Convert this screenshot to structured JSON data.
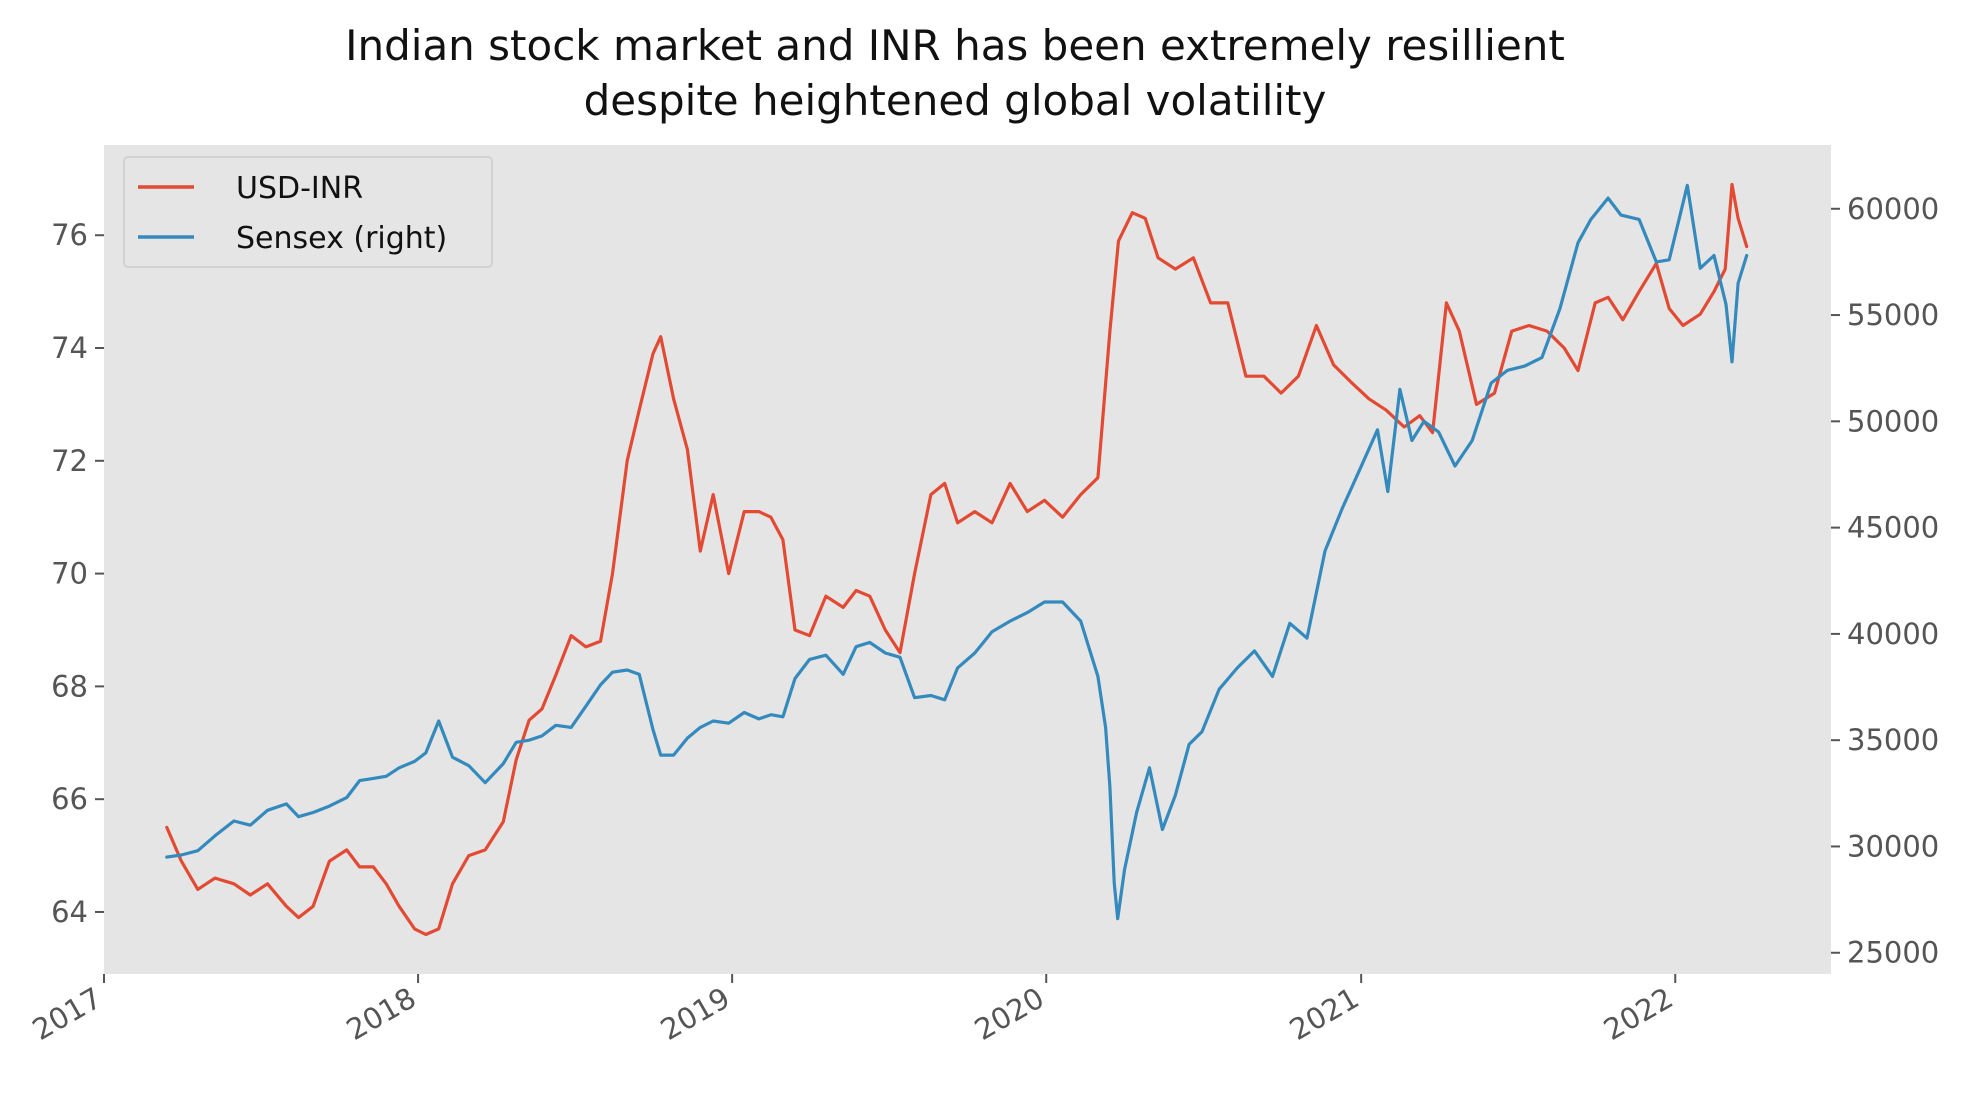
{
  "chart_data": {
    "type": "line",
    "title": [
      "Indian stock market and INR has been extremely resillient",
      "despite heightened global volatility"
    ],
    "xlabel": "",
    "ylabel": "",
    "y2label": "",
    "grid": false,
    "legend_position": "top-left",
    "x_ticks": [
      "2017",
      "2018",
      "2019",
      "2020",
      "2021",
      "2022"
    ],
    "y_ticks": [
      "64",
      "66",
      "68",
      "70",
      "72",
      "74",
      "76"
    ],
    "y2_ticks": [
      "25000",
      "30000",
      "35000",
      "40000",
      "45000",
      "50000",
      "55000",
      "60000"
    ],
    "xlim": [
      "2017-01-01",
      "2022-07-01"
    ],
    "ylim": [
      62.9,
      77.6
    ],
    "y2lim": [
      24000,
      63000
    ],
    "series": [
      {
        "name": "USD-INR",
        "axis": "left",
        "color": "#e24a33",
        "x": [
          "2017-03-15",
          "2017-04-01",
          "2017-04-20",
          "2017-05-10",
          "2017-06-01",
          "2017-06-20",
          "2017-07-10",
          "2017-08-01",
          "2017-08-15",
          "2017-09-01",
          "2017-09-20",
          "2017-10-10",
          "2017-10-25",
          "2017-11-10",
          "2017-11-25",
          "2017-12-10",
          "2017-12-28",
          "2018-01-10",
          "2018-01-25",
          "2018-02-10",
          "2018-03-01",
          "2018-03-20",
          "2018-04-10",
          "2018-04-25",
          "2018-05-10",
          "2018-05-25",
          "2018-06-10",
          "2018-06-28",
          "2018-07-15",
          "2018-08-01",
          "2018-08-15",
          "2018-09-01",
          "2018-09-15",
          "2018-10-01",
          "2018-10-10",
          "2018-10-25",
          "2018-11-10",
          "2018-11-25",
          "2018-12-10",
          "2018-12-28",
          "2019-01-15",
          "2019-02-01",
          "2019-02-15",
          "2019-03-01",
          "2019-03-15",
          "2019-04-01",
          "2019-04-20",
          "2019-05-10",
          "2019-05-25",
          "2019-06-10",
          "2019-06-28",
          "2019-07-15",
          "2019-08-01",
          "2019-08-20",
          "2019-09-05",
          "2019-09-20",
          "2019-10-10",
          "2019-10-30",
          "2019-11-20",
          "2019-12-10",
          "2019-12-30",
          "2020-01-20",
          "2020-02-10",
          "2020-03-01",
          "2020-03-15",
          "2020-03-25",
          "2020-04-10",
          "2020-04-25",
          "2020-05-10",
          "2020-05-30",
          "2020-06-20",
          "2020-07-10",
          "2020-07-30",
          "2020-08-20",
          "2020-09-10",
          "2020-09-30",
          "2020-10-20",
          "2020-11-10",
          "2020-11-30",
          "2020-12-20",
          "2021-01-10",
          "2021-01-30",
          "2021-02-20",
          "2021-03-10",
          "2021-03-25",
          "2021-04-10",
          "2021-04-25",
          "2021-05-15",
          "2021-06-05",
          "2021-06-25",
          "2021-07-15",
          "2021-08-05",
          "2021-08-25",
          "2021-09-10",
          "2021-09-30",
          "2021-10-15",
          "2021-11-01",
          "2021-11-20",
          "2021-12-10",
          "2021-12-25",
          "2022-01-10",
          "2022-01-30",
          "2022-02-15",
          "2022-02-28",
          "2022-03-08",
          "2022-03-15",
          "2022-03-25"
        ],
        "y": [
          65.5,
          64.9,
          64.4,
          64.6,
          64.5,
          64.3,
          64.5,
          64.1,
          63.9,
          64.1,
          64.9,
          65.1,
          64.8,
          64.8,
          64.5,
          64.1,
          63.7,
          63.6,
          63.7,
          64.5,
          65.0,
          65.1,
          65.6,
          66.7,
          67.4,
          67.6,
          68.2,
          68.9,
          68.7,
          68.8,
          70.0,
          72.0,
          72.9,
          73.9,
          74.2,
          73.1,
          72.2,
          70.4,
          71.4,
          70.0,
          71.1,
          71.1,
          71.0,
          70.6,
          69.0,
          68.9,
          69.6,
          69.4,
          69.7,
          69.6,
          69.0,
          68.6,
          70.0,
          71.4,
          71.6,
          70.9,
          71.1,
          70.9,
          71.6,
          71.1,
          71.3,
          71.0,
          71.4,
          71.7,
          74.3,
          75.9,
          76.4,
          76.3,
          75.6,
          75.4,
          75.6,
          74.8,
          74.8,
          73.5,
          73.5,
          73.2,
          73.5,
          74.4,
          73.7,
          73.4,
          73.1,
          72.9,
          72.6,
          72.8,
          72.5,
          74.8,
          74.3,
          73.0,
          73.2,
          74.3,
          74.4,
          74.3,
          74.0,
          73.6,
          74.8,
          74.9,
          74.5,
          75.0,
          75.5,
          74.7,
          74.4,
          74.6,
          75.0,
          75.4,
          76.9,
          76.3,
          75.8
        ]
      },
      {
        "name": "Sensex (right)",
        "axis": "right",
        "color": "#348abd",
        "x": [
          "2017-03-15",
          "2017-04-01",
          "2017-04-20",
          "2017-05-10",
          "2017-06-01",
          "2017-06-20",
          "2017-07-10",
          "2017-08-01",
          "2017-08-15",
          "2017-09-01",
          "2017-09-20",
          "2017-10-10",
          "2017-10-25",
          "2017-11-10",
          "2017-11-25",
          "2017-12-10",
          "2017-12-28",
          "2018-01-10",
          "2018-01-25",
          "2018-02-10",
          "2018-03-01",
          "2018-03-20",
          "2018-04-10",
          "2018-04-25",
          "2018-05-10",
          "2018-05-25",
          "2018-06-10",
          "2018-06-28",
          "2018-07-15",
          "2018-08-01",
          "2018-08-15",
          "2018-09-01",
          "2018-09-15",
          "2018-10-01",
          "2018-10-10",
          "2018-10-25",
          "2018-11-10",
          "2018-11-25",
          "2018-12-10",
          "2018-12-28",
          "2019-01-15",
          "2019-02-01",
          "2019-02-15",
          "2019-03-01",
          "2019-03-15",
          "2019-04-01",
          "2019-04-20",
          "2019-05-10",
          "2019-05-25",
          "2019-06-10",
          "2019-06-28",
          "2019-07-15",
          "2019-08-01",
          "2019-08-20",
          "2019-09-05",
          "2019-09-20",
          "2019-10-10",
          "2019-10-30",
          "2019-11-20",
          "2019-12-10",
          "2019-12-30",
          "2020-01-20",
          "2020-02-10",
          "2020-03-01",
          "2020-03-10",
          "2020-03-15",
          "2020-03-20",
          "2020-03-24",
          "2020-04-01",
          "2020-04-15",
          "2020-04-30",
          "2020-05-15",
          "2020-05-30",
          "2020-06-15",
          "2020-06-30",
          "2020-07-20",
          "2020-08-10",
          "2020-08-30",
          "2020-09-20",
          "2020-10-10",
          "2020-10-30",
          "2020-11-20",
          "2020-12-10",
          "2020-12-30",
          "2021-01-20",
          "2021-02-01",
          "2021-02-15",
          "2021-03-01",
          "2021-03-15",
          "2021-04-01",
          "2021-04-20",
          "2021-05-10",
          "2021-06-01",
          "2021-06-20",
          "2021-07-10",
          "2021-07-30",
          "2021-08-20",
          "2021-09-10",
          "2021-09-25",
          "2021-10-15",
          "2021-10-30",
          "2021-11-20",
          "2021-12-10",
          "2021-12-25",
          "2022-01-15",
          "2022-01-30",
          "2022-02-15",
          "2022-03-01",
          "2022-03-08",
          "2022-03-15",
          "2022-03-25"
        ],
        "y": [
          29500,
          29600,
          29800,
          30500,
          31200,
          31000,
          31700,
          32000,
          31400,
          31600,
          31900,
          32300,
          33100,
          33200,
          33300,
          33700,
          34000,
          34400,
          35900,
          34200,
          33800,
          33000,
          33900,
          34900,
          35000,
          35200,
          35700,
          35600,
          36600,
          37600,
          38200,
          38300,
          38100,
          35500,
          34300,
          34300,
          35100,
          35600,
          35900,
          35800,
          36300,
          36000,
          36200,
          36100,
          37900,
          38800,
          39000,
          38100,
          39400,
          39600,
          39100,
          38900,
          37000,
          37100,
          36900,
          38400,
          39100,
          40100,
          40600,
          41000,
          41500,
          41500,
          40600,
          38000,
          35600,
          32800,
          28300,
          26600,
          28900,
          31600,
          33700,
          30800,
          32400,
          34800,
          35400,
          37400,
          38400,
          39200,
          38000,
          40500,
          39800,
          43900,
          45900,
          47700,
          49600,
          46700,
          51500,
          49100,
          50000,
          49500,
          47900,
          49100,
          51800,
          52400,
          52600,
          53000,
          55300,
          58400,
          59500,
          60500,
          59700,
          59500,
          57500,
          57600,
          61100,
          57200,
          57800,
          55500,
          52800,
          56500,
          57800
        ]
      }
    ]
  }
}
